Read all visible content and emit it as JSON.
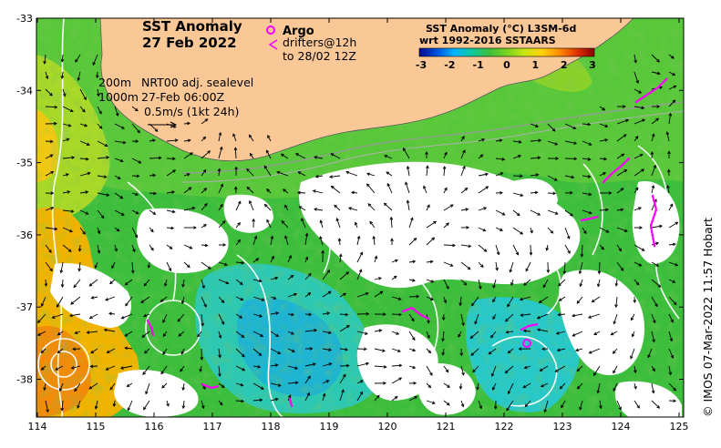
{
  "title": {
    "line1": "SST Anomaly",
    "line2": "27 Feb 2022"
  },
  "legend": {
    "argo_label": "Argo",
    "drifters_line1": "drifters@12h",
    "drifters_line2": "to 28/02 12Z",
    "argo_color": "#ff00ff"
  },
  "colorbar": {
    "title_line1": "SST Anomaly (°C) L3SM-6d",
    "title_line2": "wrt 1992-2016 SSTAARS",
    "ticks": [
      "-3",
      "-2",
      "-1",
      "0",
      "1",
      "2",
      "3"
    ],
    "colors": [
      "#0a0a8c",
      "#0050e0",
      "#00b4ff",
      "#10c8a0",
      "#3cbe3c",
      "#78d21e",
      "#c8e614",
      "#ffd200",
      "#ff8c00",
      "#e03200",
      "#8c0000"
    ]
  },
  "annotations": {
    "depth1": "200m",
    "depth2": "1000m",
    "sealevel": "NRT00 adj. sealevel",
    "time": "27-Feb 06:00Z",
    "scale": "0.5m/s (1kt 24h)"
  },
  "axes": {
    "x_ticks": [
      "114",
      "115",
      "116",
      "117",
      "118",
      "119",
      "120",
      "121",
      "122",
      "123",
      "124",
      "125"
    ],
    "y_ticks": [
      "-33",
      "-34",
      "-35",
      "-36",
      "-37",
      "-38"
    ]
  },
  "credit": "© IMOS 07-Mar-2022 11:57 Hobart",
  "colors": {
    "land": "#fac896",
    "ocean_green": "#3cbe3c",
    "ocean_cyan": "#28c8c8",
    "ocean_orange": "#f0b400",
    "no_data": "#ffffff"
  }
}
